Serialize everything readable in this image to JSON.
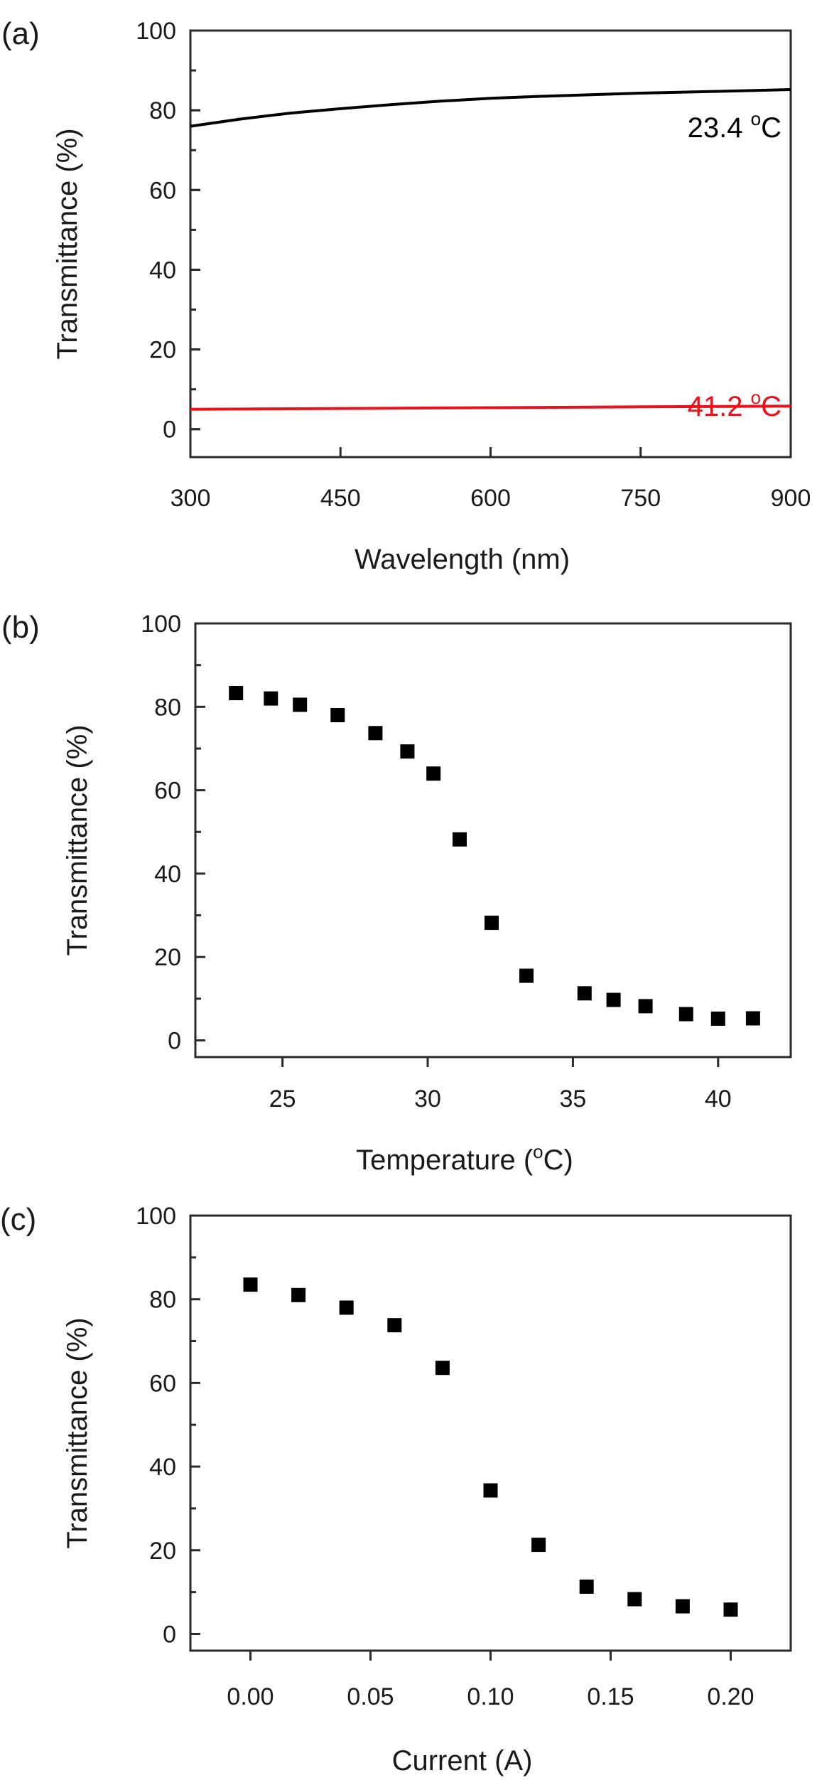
{
  "chart_data": [
    {
      "panel_label": "(a)",
      "type": "line",
      "xlabel": "Wavelength (nm)",
      "ylabel": "Transmittance (%)",
      "xlim": [
        300,
        900
      ],
      "ylim": [
        -7,
        100
      ],
      "xticks": [
        300,
        450,
        600,
        750,
        900
      ],
      "yticks": [
        0,
        20,
        40,
        60,
        80,
        100
      ],
      "series": [
        {
          "name": "23.4 °C",
          "label_main": "23.4 ",
          "label_sup": "o",
          "label_unit": "C",
          "color": "#000000",
          "x": [
            300,
            350,
            400,
            450,
            500,
            550,
            600,
            650,
            700,
            750,
            800,
            850,
            900
          ],
          "y": [
            76.0,
            77.8,
            79.3,
            80.4,
            81.4,
            82.3,
            83.0,
            83.5,
            83.9,
            84.3,
            84.6,
            84.9,
            85.2
          ]
        },
        {
          "name": "41.2 °C",
          "label_main": "41.2 ",
          "label_sup": "o",
          "label_unit": "C",
          "color": "#e8121b",
          "x": [
            300,
            450,
            600,
            750,
            900
          ],
          "y": [
            5.0,
            5.2,
            5.4,
            5.6,
            5.8
          ]
        }
      ]
    },
    {
      "panel_label": "(b)",
      "type": "scatter",
      "xlabel_main": "Temperature (",
      "xlabel_sup": "o",
      "xlabel_unit": "C)",
      "ylabel": "Transmittance (%)",
      "xlim": [
        22,
        42.5
      ],
      "ylim": [
        -4,
        100
      ],
      "xticks": [
        25,
        30,
        35,
        40
      ],
      "yticks": [
        0,
        20,
        40,
        60,
        80,
        100
      ],
      "color": "#000000",
      "x": [
        23.4,
        24.6,
        25.6,
        26.9,
        28.2,
        29.3,
        30.2,
        31.1,
        32.2,
        33.4,
        35.4,
        36.4,
        37.5,
        38.9,
        40.0,
        41.2
      ],
      "y": [
        83.3,
        82.0,
        80.5,
        78.0,
        73.7,
        69.3,
        64.0,
        48.2,
        28.2,
        15.5,
        11.3,
        9.7,
        8.2,
        6.3,
        5.2,
        5.3
      ]
    },
    {
      "panel_label": "(c)",
      "type": "scatter",
      "xlabel": "Current (A)",
      "ylabel": "Transmittance (%)",
      "xlim": [
        -0.025,
        0.225
      ],
      "ylim": [
        -4,
        100
      ],
      "xticks": [
        0.0,
        0.05,
        0.1,
        0.15,
        0.2
      ],
      "xtick_labels": [
        "0.00",
        "0.05",
        "0.10",
        "0.15",
        "0.20"
      ],
      "yticks": [
        0,
        20,
        40,
        60,
        80,
        100
      ],
      "color": "#000000",
      "x": [
        0.0,
        0.02,
        0.04,
        0.06,
        0.08,
        0.1,
        0.12,
        0.14,
        0.16,
        0.18,
        0.2
      ],
      "y": [
        83.5,
        81.0,
        78.0,
        73.8,
        63.6,
        34.3,
        21.3,
        11.3,
        8.3,
        6.6,
        5.8
      ]
    }
  ]
}
